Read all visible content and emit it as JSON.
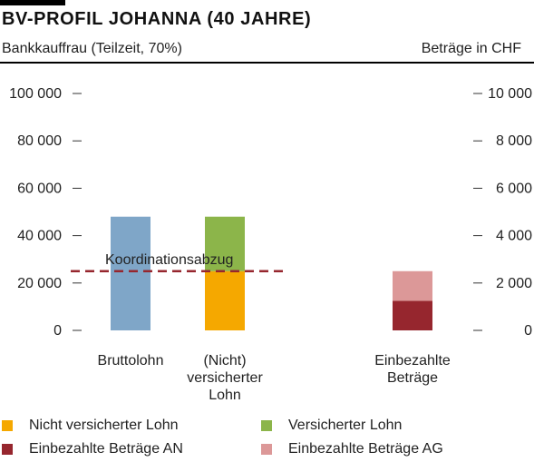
{
  "header": {
    "title": "BV-PROFIL JOHANNA (40 JAHRE)",
    "subtitle_left": "Bankkauffrau (Teilzeit, 70%)",
    "subtitle_right": "Beträge in CHF"
  },
  "colors": {
    "blue": "#7fa6c8",
    "orange": "#f5a800",
    "green": "#8cb54a",
    "darkred": "#96262e",
    "pink": "#dc9898",
    "dashed": "#96262e"
  },
  "chart_data": {
    "type": "bar",
    "y_left": {
      "ylim": [
        0,
        100000
      ],
      "ticks": [
        "100 000",
        "80 000",
        "60 000",
        "40 000",
        "20 000",
        "0"
      ]
    },
    "y_right": {
      "ylim": [
        0,
        10000
      ],
      "ticks": [
        "10 000",
        "8 000",
        "6 000",
        "4 000",
        "2 000",
        "0"
      ]
    },
    "categories": [
      {
        "label_lines": [
          "Bruttolohn"
        ]
      },
      {
        "label_lines": [
          "(Nicht)",
          "versicherter",
          "Lohn"
        ]
      },
      {
        "label_lines": [
          "Einbezahlte",
          "Beträge"
        ]
      }
    ],
    "bars": [
      {
        "category": 0,
        "axis": "left",
        "segments": [
          {
            "series": "Bruttolohn",
            "value": 48000,
            "color": "blue"
          }
        ]
      },
      {
        "category": 1,
        "axis": "left",
        "segments": [
          {
            "series": "Nicht versicherter Lohn",
            "value": 25000,
            "color": "orange"
          },
          {
            "series": "Versicherter Lohn",
            "value": 23000,
            "color": "green"
          }
        ]
      },
      {
        "category": 2,
        "axis": "right",
        "segments": [
          {
            "series": "Einbezahlte Beträge AN",
            "value": 1250,
            "color": "darkred"
          },
          {
            "series": "Einbezahlte Beträge AG",
            "value": 1250,
            "color": "pink"
          }
        ]
      }
    ],
    "reference_line": {
      "label": "Koordinationsabzug",
      "value": 25000,
      "axis": "left",
      "style": "dashed"
    },
    "legend": [
      {
        "label": "Nicht versicherter Lohn",
        "color": "orange"
      },
      {
        "label": "Versicherter Lohn",
        "color": "green"
      },
      {
        "label": "Einbezahlte Beträge AN",
        "color": "darkred"
      },
      {
        "label": "Einbezahlte Beträge AG",
        "color": "pink"
      }
    ]
  }
}
